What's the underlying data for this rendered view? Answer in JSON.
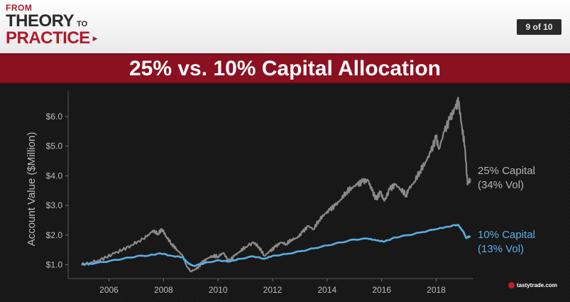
{
  "header": {
    "logo_from": "FROM",
    "logo_theory": "THEORY",
    "logo_to": "TO",
    "logo_practice": "PRACTICE",
    "logo_arrow": "▶",
    "page_indicator": "9 of 10"
  },
  "footer": {
    "brand": "tastytrade",
    "brand_suffix": ".com"
  },
  "colors": {
    "series_25": "#8a8a8a",
    "series_10": "#5aaee0",
    "banner": "#8b1020"
  },
  "chart_data": {
    "type": "line",
    "title": "25% vs. 10% Capital Allocation",
    "xlabel": "",
    "ylabel": "Account Value ($Million)",
    "xlim": [
      2005,
      2019.5
    ],
    "ylim": [
      0.5,
      6.6
    ],
    "x_ticks": [
      2006,
      2008,
      2010,
      2012,
      2014,
      2016,
      2018
    ],
    "y_ticks": [
      {
        "value": 1.0,
        "label": "$1.0"
      },
      {
        "value": 2.0,
        "label": "$2.0"
      },
      {
        "value": 3.0,
        "label": "$3.0"
      },
      {
        "value": 4.0,
        "label": "$4.0"
      },
      {
        "value": 5.0,
        "label": "$5.0"
      },
      {
        "value": 6.0,
        "label": "$6.0"
      }
    ],
    "grid": false,
    "series": [
      {
        "name_line1": "25% Capital",
        "name_line2": "(34% Vol)",
        "color": "#8a8a8a",
        "points": [
          [
            2005.0,
            1.0
          ],
          [
            2005.3,
            1.05
          ],
          [
            2005.6,
            1.15
          ],
          [
            2005.9,
            1.25
          ],
          [
            2006.2,
            1.38
          ],
          [
            2006.5,
            1.5
          ],
          [
            2006.8,
            1.65
          ],
          [
            2007.1,
            1.8
          ],
          [
            2007.4,
            1.95
          ],
          [
            2007.6,
            2.15
          ],
          [
            2007.8,
            2.05
          ],
          [
            2007.95,
            2.2
          ],
          [
            2008.1,
            1.95
          ],
          [
            2008.3,
            1.7
          ],
          [
            2008.5,
            1.5
          ],
          [
            2008.7,
            1.3
          ],
          [
            2008.85,
            0.95
          ],
          [
            2009.0,
            0.78
          ],
          [
            2009.2,
            0.85
          ],
          [
            2009.4,
            1.05
          ],
          [
            2009.6,
            1.2
          ],
          [
            2009.8,
            1.3
          ],
          [
            2010.0,
            1.28
          ],
          [
            2010.2,
            1.4
          ],
          [
            2010.4,
            1.1
          ],
          [
            2010.6,
            1.3
          ],
          [
            2010.8,
            1.45
          ],
          [
            2011.0,
            1.6
          ],
          [
            2011.3,
            1.75
          ],
          [
            2011.5,
            1.6
          ],
          [
            2011.7,
            1.3
          ],
          [
            2011.9,
            1.45
          ],
          [
            2012.1,
            1.6
          ],
          [
            2012.3,
            1.75
          ],
          [
            2012.5,
            1.7
          ],
          [
            2012.7,
            1.85
          ],
          [
            2012.9,
            1.9
          ],
          [
            2013.1,
            2.1
          ],
          [
            2013.3,
            2.3
          ],
          [
            2013.5,
            2.2
          ],
          [
            2013.7,
            2.5
          ],
          [
            2013.9,
            2.7
          ],
          [
            2014.1,
            2.85
          ],
          [
            2014.3,
            3.0
          ],
          [
            2014.5,
            3.2
          ],
          [
            2014.7,
            3.45
          ],
          [
            2014.9,
            3.6
          ],
          [
            2015.1,
            3.7
          ],
          [
            2015.3,
            3.8
          ],
          [
            2015.5,
            3.85
          ],
          [
            2015.65,
            3.5
          ],
          [
            2015.8,
            3.2
          ],
          [
            2015.95,
            3.45
          ],
          [
            2016.1,
            3.15
          ],
          [
            2016.3,
            3.55
          ],
          [
            2016.5,
            3.7
          ],
          [
            2016.7,
            3.55
          ],
          [
            2016.9,
            3.35
          ],
          [
            2017.0,
            3.55
          ],
          [
            2017.2,
            3.8
          ],
          [
            2017.4,
            4.15
          ],
          [
            2017.6,
            4.45
          ],
          [
            2017.8,
            4.8
          ],
          [
            2018.0,
            5.3
          ],
          [
            2018.1,
            4.9
          ],
          [
            2018.3,
            5.5
          ],
          [
            2018.5,
            5.9
          ],
          [
            2018.7,
            6.3
          ],
          [
            2018.82,
            6.5
          ],
          [
            2018.95,
            5.6
          ],
          [
            2019.05,
            5.0
          ],
          [
            2019.15,
            3.7
          ],
          [
            2019.25,
            3.9
          ]
        ]
      },
      {
        "name_line1": "10% Capital",
        "name_line2": "(13% Vol)",
        "color": "#5aaee0",
        "points": [
          [
            2005.0,
            1.0
          ],
          [
            2005.5,
            1.05
          ],
          [
            2006.0,
            1.12
          ],
          [
            2006.5,
            1.2
          ],
          [
            2007.0,
            1.28
          ],
          [
            2007.5,
            1.32
          ],
          [
            2007.9,
            1.38
          ],
          [
            2008.3,
            1.3
          ],
          [
            2008.7,
            1.25
          ],
          [
            2008.9,
            1.05
          ],
          [
            2009.1,
            0.96
          ],
          [
            2009.5,
            1.05
          ],
          [
            2010.0,
            1.15
          ],
          [
            2010.4,
            1.1
          ],
          [
            2010.8,
            1.2
          ],
          [
            2011.3,
            1.28
          ],
          [
            2011.7,
            1.2
          ],
          [
            2012.0,
            1.3
          ],
          [
            2012.5,
            1.36
          ],
          [
            2013.0,
            1.45
          ],
          [
            2013.5,
            1.55
          ],
          [
            2014.0,
            1.65
          ],
          [
            2014.5,
            1.75
          ],
          [
            2015.0,
            1.85
          ],
          [
            2015.5,
            1.88
          ],
          [
            2015.8,
            1.82
          ],
          [
            2016.1,
            1.78
          ],
          [
            2016.5,
            1.92
          ],
          [
            2017.0,
            2.0
          ],
          [
            2017.5,
            2.1
          ],
          [
            2018.0,
            2.2
          ],
          [
            2018.4,
            2.28
          ],
          [
            2018.8,
            2.35
          ],
          [
            2019.0,
            2.1
          ],
          [
            2019.1,
            1.9
          ],
          [
            2019.25,
            1.97
          ]
        ]
      }
    ]
  }
}
